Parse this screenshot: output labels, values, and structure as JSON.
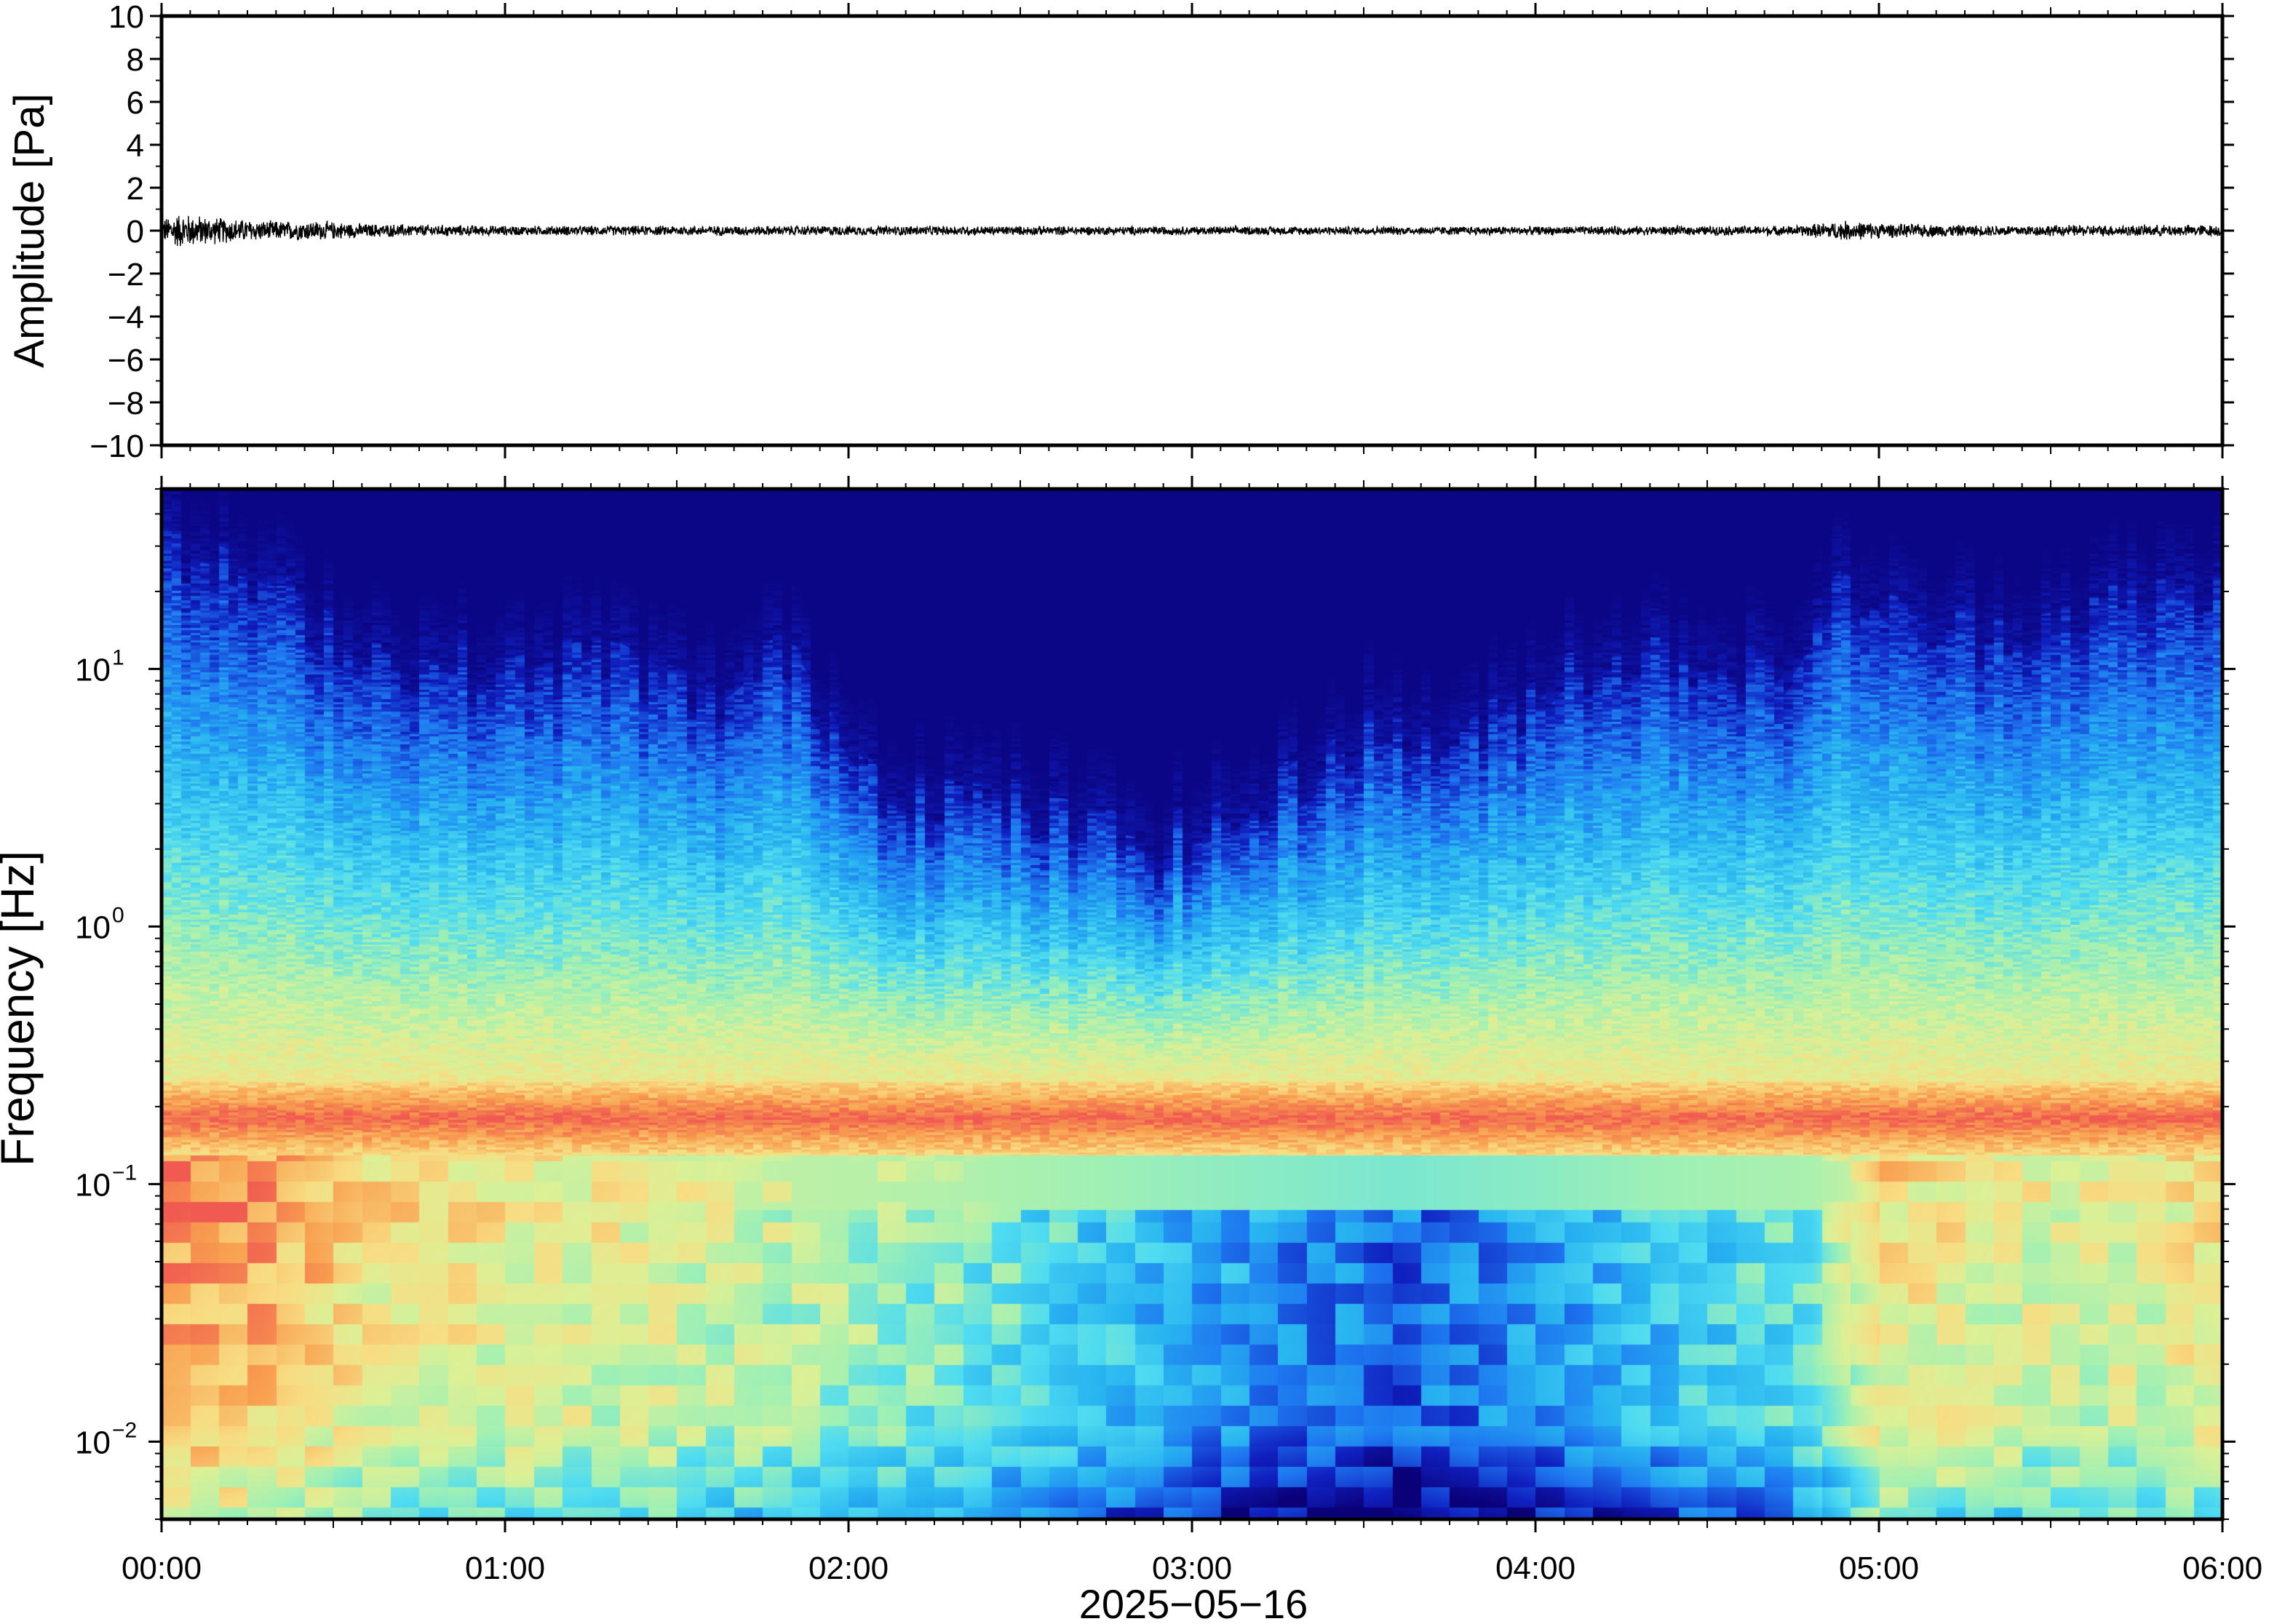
{
  "chart_data": [
    {
      "type": "line",
      "panel": "waveform",
      "title": "",
      "xlabel": "",
      "ylabel": "Amplitude [Pa]",
      "ylim": [
        -10,
        10
      ],
      "yticks": [
        10,
        8,
        6,
        4,
        2,
        0,
        -2,
        -4,
        -6,
        -8,
        -10
      ],
      "ytick_labels": [
        "10",
        "8",
        "6",
        "4",
        "2",
        "0",
        "−2",
        "−4",
        "−6",
        "−8",
        "−10"
      ],
      "x_range_hours": [
        0,
        6
      ],
      "line_color": "#000000",
      "envelope": {
        "description_hours": [
          0.0,
          0.05,
          0.15,
          0.3,
          0.45,
          0.6,
          1.0,
          2.0,
          3.0,
          4.0,
          4.75,
          4.9,
          5.05,
          5.3,
          6.0
        ],
        "half_amplitude_pa": [
          0.6,
          0.9,
          0.7,
          0.5,
          0.5,
          0.35,
          0.25,
          0.25,
          0.22,
          0.22,
          0.25,
          0.5,
          0.35,
          0.28,
          0.3
        ]
      }
    },
    {
      "type": "heatmap",
      "panel": "spectrogram",
      "title": "",
      "xlabel": "2025−05−16",
      "ylabel": "Frequency [Hz]",
      "x_range_hours": [
        0,
        6
      ],
      "xticks": [
        "00:00",
        "01:00",
        "02:00",
        "03:00",
        "04:00",
        "05:00",
        "06:00"
      ],
      "yscale": "log",
      "ylim_hz": [
        0.005,
        50
      ],
      "yticks_hz": [
        10,
        1,
        0.1,
        0.01
      ],
      "ytick_labels": [
        {
          "base": "10",
          "exp": "1"
        },
        {
          "base": "10",
          "exp": "0"
        },
        {
          "base": "10",
          "exp": "−1"
        },
        {
          "base": "10",
          "exp": "−2"
        }
      ],
      "colormap": [
        "#0a0078",
        "#1020c0",
        "#1e78f0",
        "#28b4f0",
        "#50dcf0",
        "#a0f0b4",
        "#dcf096",
        "#f8dc82",
        "#f8a050",
        "#f05a50"
      ],
      "microseism_band_hz": [
        0.13,
        0.25
      ],
      "upper_cutoff_hz_by_time": {
        "hours": [
          0.0,
          0.3,
          0.6,
          1.0,
          1.3,
          1.6,
          1.8,
          2.1,
          2.5,
          2.9,
          3.2,
          3.5,
          3.8,
          4.1,
          4.4,
          4.7,
          4.9,
          5.1,
          5.4,
          5.7,
          6.0
        ],
        "log10_hz": [
          1.45,
          1.3,
          1.05,
          0.95,
          1.05,
          0.85,
          1.05,
          0.55,
          0.45,
          0.3,
          0.45,
          0.75,
          0.7,
          1.0,
          1.05,
          0.95,
          1.3,
          1.15,
          1.15,
          1.25,
          1.3
        ]
      },
      "low_freq_energy_by_time": {
        "hours": [
          0.0,
          0.3,
          0.6,
          1.0,
          1.5,
          1.9,
          2.3,
          2.8,
          3.2,
          3.6,
          4.0,
          4.4,
          4.8,
          5.0,
          5.4,
          5.8,
          6.0
        ],
        "level": [
          0.95,
          0.9,
          0.78,
          0.74,
          0.7,
          0.62,
          0.55,
          0.4,
          0.3,
          0.22,
          0.3,
          0.42,
          0.5,
          0.78,
          0.7,
          0.72,
          0.78
        ]
      }
    }
  ]
}
